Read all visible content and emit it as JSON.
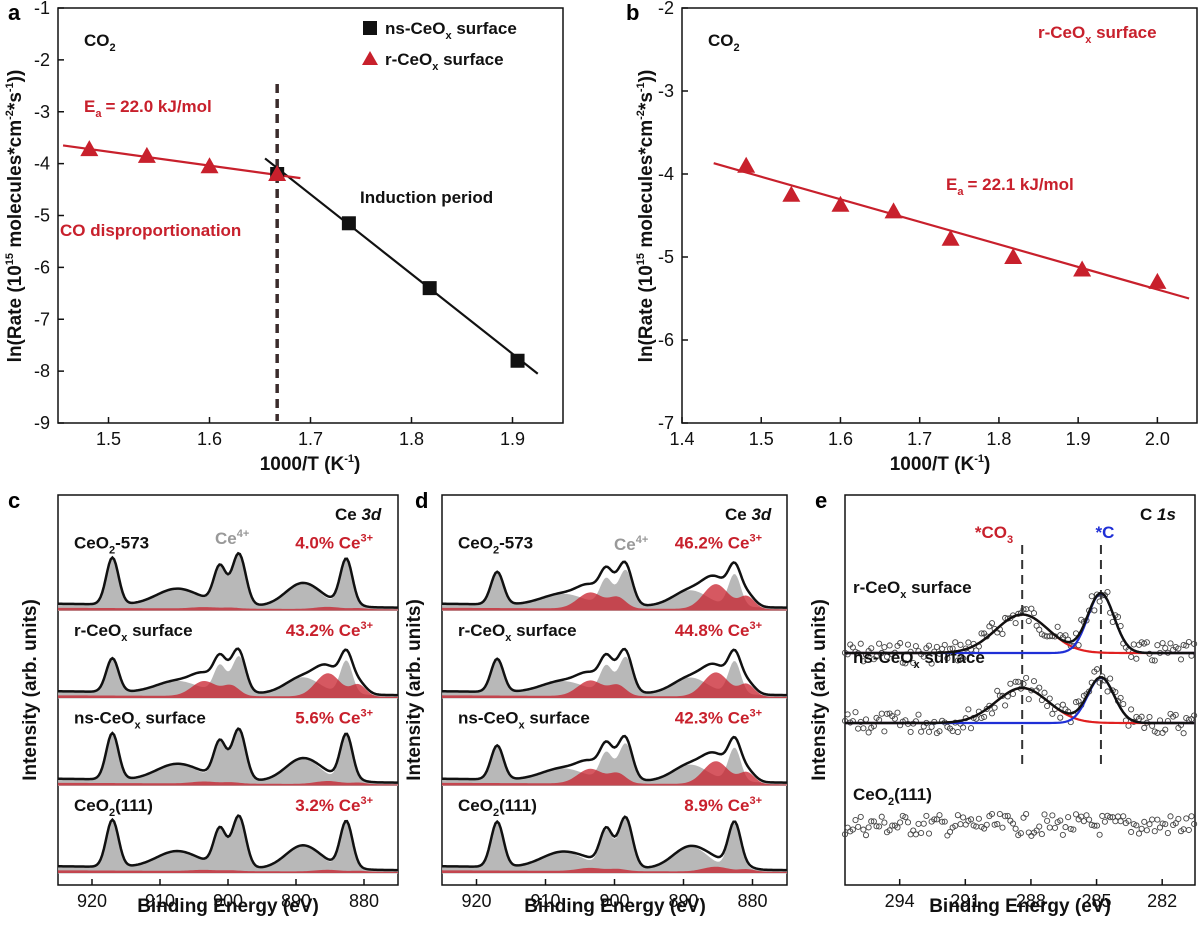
{
  "colors": {
    "red": "#c8202c",
    "black": "#111111",
    "blue": "#1f2fd6",
    "grey_peak": "#b0b0b0",
    "red_peak": "#c8202c",
    "dashed": "#3a2b2b"
  },
  "chart_data": [
    {
      "id": "a",
      "type": "scatter",
      "panel_letter": "a",
      "molecule": "CO",
      "molecule_sub": "2",
      "xlabel_main": "1000/T (K",
      "xlabel_sup": "-1",
      "xlabel_end": ")",
      "ylabel_main": "ln(Rate (10",
      "ylabel_sup1": "15",
      "ylabel_mid": " molecules*cm",
      "ylabel_sup2": "-2",
      "ylabel_mid2": "*s",
      "ylabel_sup3": "-1",
      "ylabel_end": "))",
      "xlim": [
        1.45,
        1.95
      ],
      "ylim": [
        -9,
        -1
      ],
      "xticks": [
        1.5,
        1.6,
        1.7,
        1.8,
        1.9
      ],
      "yticks": [
        -9,
        -8,
        -7,
        -6,
        -5,
        -4,
        -3,
        -2,
        -1
      ],
      "xtick_labels": [
        "1.5",
        "1.6",
        "1.7",
        "1.8",
        "1.9"
      ],
      "ytick_labels": [
        "-9",
        "-8",
        "-7",
        "-6",
        "-5",
        "-4",
        "-3",
        "-2",
        "-1"
      ],
      "series": [
        {
          "name": "ns-CeOx surface",
          "marker": "square",
          "color": "#111111",
          "x": [
            1.667,
            1.738,
            1.818,
            1.905
          ],
          "y": [
            -4.2,
            -5.15,
            -6.4,
            -7.8
          ],
          "fit": {
            "x": [
              1.655,
              1.925
            ],
            "y": [
              -3.9,
              -8.05
            ]
          }
        },
        {
          "name": "r-CeOx surface",
          "marker": "triangle",
          "color": "#c8202c",
          "x": [
            1.481,
            1.538,
            1.6,
            1.667
          ],
          "y": [
            -3.72,
            -3.85,
            -4.05,
            -4.2
          ],
          "fit": {
            "x": [
              1.455,
              1.69
            ],
            "y": [
              -3.65,
              -4.28
            ]
          }
        }
      ],
      "legend": [
        {
          "main": "ns-CeO",
          "sub": "x",
          "end": " surface"
        },
        {
          "main": "r-CeO",
          "sub": "x",
          "end": " surface"
        }
      ],
      "vline_x": 1.667,
      "annotations": {
        "ea_main": "E",
        "ea_sub": "a",
        "ea_value": "= 22.0 kJ/mol",
        "induction": "Induction period",
        "disproportionation": "CO disproportionation"
      }
    },
    {
      "id": "b",
      "type": "scatter",
      "panel_letter": "b",
      "molecule": "CO",
      "molecule_sub": "2",
      "xlabel_main": "1000/T (K",
      "xlabel_sup": "-1",
      "xlabel_end": ")",
      "ylabel_main": "ln(Rate (10",
      "ylabel_sup1": "15",
      "ylabel_mid": " molecules*cm",
      "ylabel_sup2": "-2",
      "ylabel_mid2": "*s",
      "ylabel_sup3": "-1",
      "ylabel_end": "))",
      "xlim": [
        1.4,
        2.05
      ],
      "ylim": [
        -7,
        -2
      ],
      "xticks": [
        1.4,
        1.5,
        1.6,
        1.7,
        1.8,
        1.9,
        2.0
      ],
      "yticks": [
        -7,
        -6,
        -5,
        -4,
        -3,
        -2
      ],
      "xtick_labels": [
        "1.4",
        "1.5",
        "1.6",
        "1.7",
        "1.8",
        "1.9",
        "2.0"
      ],
      "ytick_labels": [
        "-7",
        "-6",
        "-5",
        "-4",
        "-3",
        "-2"
      ],
      "series": [
        {
          "name": "r-CeOx surface",
          "marker": "triangle",
          "color": "#c8202c",
          "x": [
            1.481,
            1.538,
            1.6,
            1.667,
            1.739,
            1.818,
            1.905,
            2.0
          ],
          "y": [
            -3.9,
            -4.25,
            -4.37,
            -4.45,
            -4.78,
            -5.0,
            -5.15,
            -5.3
          ],
          "fit": {
            "x": [
              1.44,
              2.04
            ],
            "y": [
              -3.87,
              -5.5
            ]
          }
        }
      ],
      "title_main": "r-CeO",
      "title_sub": "x",
      "title_end": " surface",
      "annotations": {
        "ea_main": "E",
        "ea_sub": "a",
        "ea_value": "= 22.1 kJ/mol"
      }
    },
    {
      "id": "c",
      "type": "line",
      "panel_letter": "c",
      "region_main": "Ce ",
      "region_italic": "3d",
      "xlabel": "Binding Energy (eV)",
      "ylabel": "Intensity (arb. units)",
      "xlim": [
        925,
        875
      ],
      "xticks": [
        920,
        910,
        900,
        890,
        880
      ],
      "xtick_labels": [
        "920",
        "910",
        "900",
        "890",
        "880"
      ],
      "ce4_label": "Ce",
      "ce4_sup": "4+",
      "spectra": [
        {
          "name_main": "CeO",
          "name_sub": "2",
          "name_end": "-573",
          "ce3_value": "4.0% Ce",
          "ce3_sup": "3+",
          "ce3_fraction": 0.04
        },
        {
          "name_main": "r-CeO",
          "name_sub": "x",
          "name_end": " surface",
          "ce3_value": "43.2% Ce",
          "ce3_sup": "3+",
          "ce3_fraction": 0.432
        },
        {
          "name_main": "ns-CeO",
          "name_sub": "x",
          "name_end": " surface",
          "ce3_value": "5.6% Ce",
          "ce3_sup": "3+",
          "ce3_fraction": 0.056
        },
        {
          "name_main": "CeO",
          "name_sub": "2",
          "name_end": "(111)",
          "ce3_value": "3.2% Ce",
          "ce3_sup": "3+",
          "ce3_fraction": 0.032
        }
      ]
    },
    {
      "id": "d",
      "type": "line",
      "panel_letter": "d",
      "region_main": "Ce ",
      "region_italic": "3d",
      "xlabel": "Binding Energy (eV)",
      "ylabel": "Intensity (arb. units)",
      "xlim": [
        925,
        875
      ],
      "xticks": [
        920,
        910,
        900,
        890,
        880
      ],
      "xtick_labels": [
        "920",
        "910",
        "900",
        "890",
        "880"
      ],
      "ce4_label": "Ce",
      "ce4_sup": "4+",
      "spectra": [
        {
          "name_main": "CeO",
          "name_sub": "2",
          "name_end": "-573",
          "ce3_value": "46.2% Ce",
          "ce3_sup": "3+",
          "ce3_fraction": 0.462
        },
        {
          "name_main": "r-CeO",
          "name_sub": "x",
          "name_end": " surface",
          "ce3_value": "44.8% Ce",
          "ce3_sup": "3+",
          "ce3_fraction": 0.448
        },
        {
          "name_main": "ns-CeO",
          "name_sub": "x",
          "name_end": " surface",
          "ce3_value": "42.3% Ce",
          "ce3_sup": "3+",
          "ce3_fraction": 0.423
        },
        {
          "name_main": "CeO",
          "name_sub": "2",
          "name_end": "(111)",
          "ce3_value": "8.9% Ce",
          "ce3_sup": "3+",
          "ce3_fraction": 0.089
        }
      ]
    },
    {
      "id": "e",
      "type": "scatter",
      "panel_letter": "e",
      "region_main": "C ",
      "region_italic": "1s",
      "xlabel": "Binding Energy (eV)",
      "ylabel": "Intensity (arb. units)",
      "xlim": [
        296.5,
        280.5
      ],
      "xticks": [
        294,
        291,
        288,
        285,
        282
      ],
      "xtick_labels": [
        "294",
        "291",
        "288",
        "285",
        "282"
      ],
      "peak_co3": {
        "label_main": "*CO",
        "label_sub": "3",
        "position": 288.4
      },
      "peak_c": {
        "label": "*C",
        "position": 284.8
      },
      "spectra": [
        {
          "name_main": "r-CeO",
          "name_sub": "x",
          "name_end": " surface",
          "co3_amp": 0.55,
          "c_amp": 0.85
        },
        {
          "name_main": "ns-CeO",
          "name_sub": "x",
          "name_end": " surface",
          "co3_amp": 0.5,
          "c_amp": 0.65
        },
        {
          "name_main": "CeO",
          "name_sub": "2",
          "name_end": "(111)",
          "co3_amp": 0,
          "c_amp": 0
        }
      ]
    }
  ]
}
